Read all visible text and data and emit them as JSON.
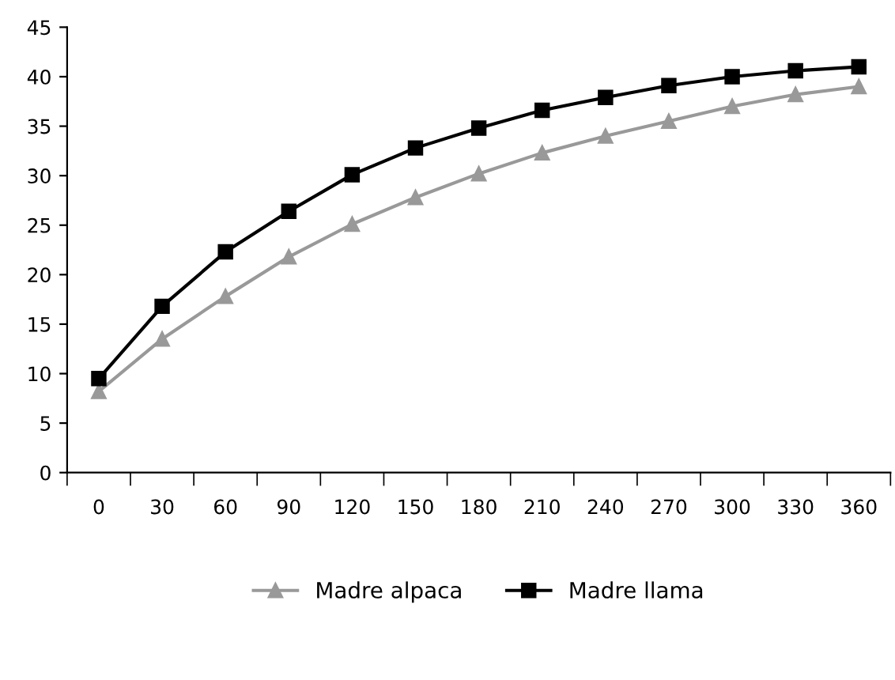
{
  "chart_data": {
    "type": "line",
    "categories": [
      "0",
      "30",
      "60",
      "90",
      "120",
      "150",
      "180",
      "210",
      "240",
      "270",
      "300",
      "330",
      "360"
    ],
    "series": [
      {
        "name": "Madre alpaca",
        "color": "#999999",
        "marker": "triangle",
        "values": [
          8.2,
          13.5,
          17.8,
          21.8,
          25.1,
          27.8,
          30.2,
          32.3,
          34.0,
          35.5,
          37.0,
          38.2,
          39.0
        ]
      },
      {
        "name": "Madre llama",
        "color": "#000000",
        "marker": "square",
        "values": [
          9.5,
          16.8,
          22.3,
          26.4,
          30.1,
          32.8,
          34.8,
          36.6,
          37.9,
          39.1,
          40.0,
          40.6,
          41.0
        ]
      }
    ],
    "ylim": [
      0,
      45
    ],
    "yticks": [
      0,
      5,
      10,
      15,
      20,
      25,
      30,
      35,
      40,
      45
    ],
    "grid": false,
    "legend": "bottom"
  }
}
